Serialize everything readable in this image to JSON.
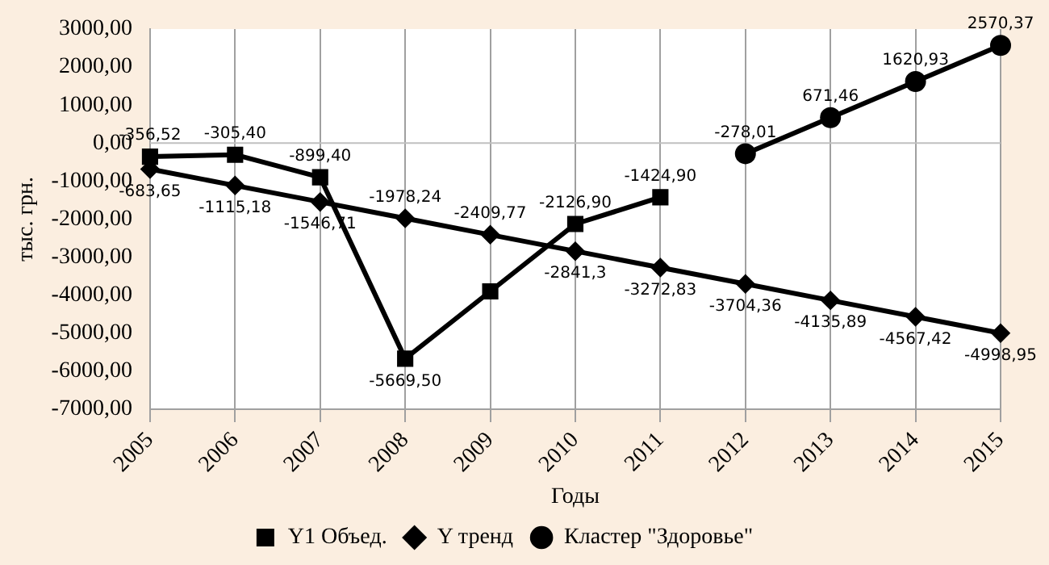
{
  "chart_data": {
    "type": "line",
    "xlabel": "Годы",
    "ylabel": "тыс. грн.",
    "categories": [
      "2005",
      "2006",
      "2007",
      "2008",
      "2009",
      "2010",
      "2011",
      "2012",
      "2013",
      "2014",
      "2015"
    ],
    "series": [
      {
        "name": "Y1 Объед.",
        "color": "#000000",
        "marker": "square",
        "values": [
          -356.52,
          -305.4,
          -899.4,
          -5669.5,
          -3900,
          -2126.9,
          -1424.9,
          null,
          null,
          null,
          null
        ],
        "value_labels": [
          "-356,52",
          "-305,40",
          "-899,40",
          "-5669,50",
          null,
          "-2126,90",
          "-1424,90",
          null,
          null,
          null,
          null
        ]
      },
      {
        "name": "Y тренд",
        "color": "#000000",
        "marker": "diamond",
        "values": [
          -683.65,
          -1115.18,
          -1546.71,
          -1978.24,
          -2409.77,
          -2841.3,
          -3272.83,
          -3704.36,
          -4135.89,
          -4567.42,
          -4998.95
        ],
        "value_labels": [
          "-683,65",
          "-1115,18",
          "-1546,71",
          "-1978,24",
          "-2409,77",
          "-2841,3",
          "-3272,83",
          "-3704,36",
          "-4135,89",
          "-4567,42",
          "-4998,95"
        ]
      },
      {
        "name": "Кластер \"Здоровье\"",
        "color": "#000000",
        "marker": "circle",
        "values": [
          null,
          null,
          null,
          null,
          null,
          null,
          null,
          -278.01,
          671.46,
          1620.93,
          2570.37
        ],
        "value_labels": [
          null,
          null,
          null,
          null,
          null,
          null,
          null,
          "-278,01",
          "671,46",
          "1620,93",
          "2570,37"
        ]
      }
    ],
    "ylim": [
      -7000,
      3000
    ],
    "yticks": [
      {
        "value": 3000,
        "label": "3000,00"
      },
      {
        "value": 2000,
        "label": "2000,00"
      },
      {
        "value": 1000,
        "label": "1000,00"
      },
      {
        "value": 0,
        "label": "0,00"
      },
      {
        "value": -1000,
        "label": "-1000,00"
      },
      {
        "value": -2000,
        "label": "-2000,00"
      },
      {
        "value": -3000,
        "label": "-3000,00"
      },
      {
        "value": -4000,
        "label": "-4000,00"
      },
      {
        "value": -5000,
        "label": "-5000,00"
      },
      {
        "value": -6000,
        "label": "-6000,00"
      },
      {
        "value": -7000,
        "label": "-7000,00"
      }
    ],
    "ref_lines": [
      {
        "axis": "y",
        "value": 0,
        "color": "#c0c0c0"
      }
    ],
    "grid": "x",
    "legend": "bottom",
    "line_style": "solid"
  }
}
